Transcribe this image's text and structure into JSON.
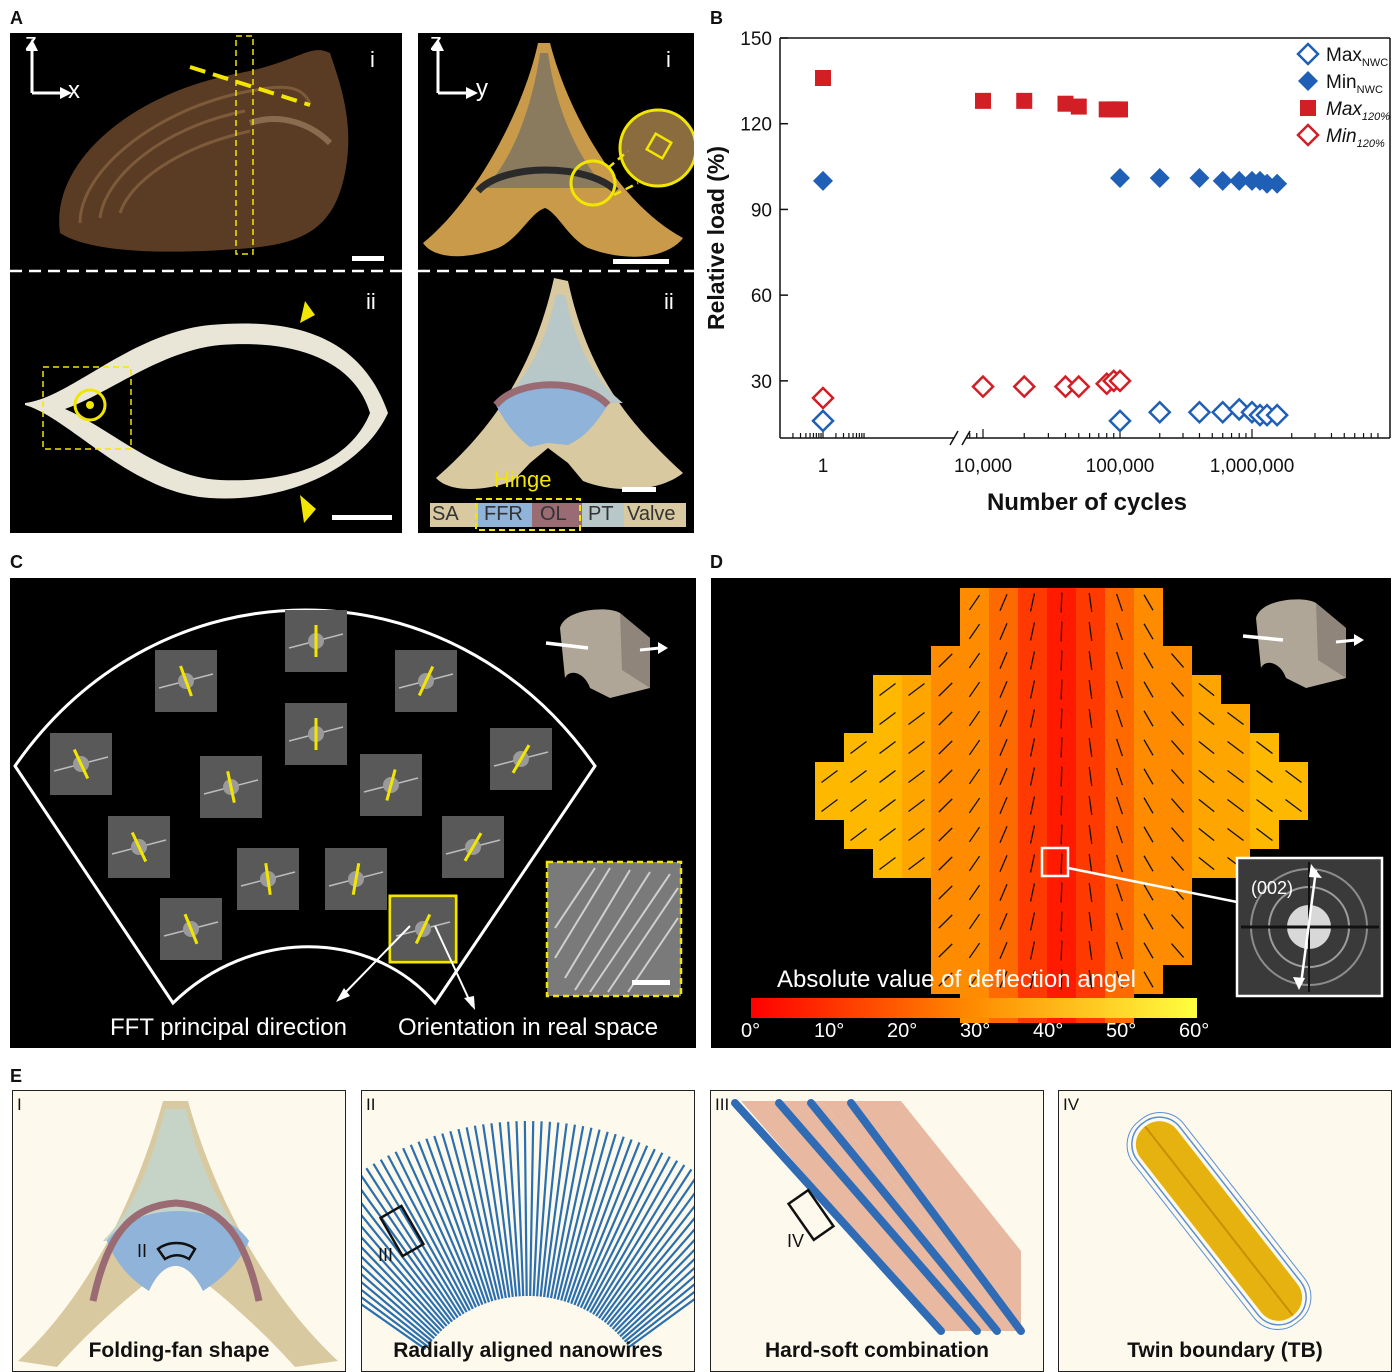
{
  "panels": {
    "A": "A",
    "B": "B",
    "C": "C",
    "D": "D",
    "E": "E"
  },
  "panelA": {
    "left": {
      "axis_v": "z",
      "axis_h": "x",
      "top_roman": "i",
      "bottom_roman": "ii"
    },
    "right": {
      "axis_v": "z",
      "axis_h": "y",
      "top_roman": "i",
      "bottom_roman": "ii",
      "hinge_label": "Hinge",
      "legend": [
        "SA",
        "FFR",
        "OL",
        "PT",
        "Valve"
      ]
    },
    "colors": {
      "highlight": "#f2e600",
      "valve": "#d9c9a0",
      "ffr": "#8fb3d9",
      "ol": "#9a6b73",
      "pt": "#b8c8c8"
    }
  },
  "chart_data": {
    "type": "scatter",
    "xlabel": "Number of cycles",
    "ylabel": "Relative load (%)",
    "xscale": "log (axis break between 1 and 10,000)",
    "ylim": [
      10,
      150
    ],
    "yticks": [
      "30",
      "60",
      "90",
      "120",
      "150"
    ],
    "xticks": [
      "1",
      "10,000",
      "100,000",
      "1,000,000"
    ],
    "legend_position": "top-right",
    "series": [
      {
        "name": "Max",
        "sub": "NWC",
        "marker": "open-diamond",
        "color": "#1f5fb5",
        "points": [
          [
            1,
            16
          ],
          [
            100000,
            16
          ],
          [
            200000,
            19
          ],
          [
            400000,
            19
          ],
          [
            600000,
            19
          ],
          [
            800000,
            20
          ],
          [
            1000000,
            19
          ],
          [
            1150000,
            18
          ],
          [
            1300000,
            18
          ],
          [
            1550000,
            18
          ]
        ]
      },
      {
        "name": "Min",
        "sub": "NWC",
        "marker": "filled-diamond",
        "color": "#1f5fb5",
        "points": [
          [
            1,
            100
          ],
          [
            100000,
            101
          ],
          [
            200000,
            101
          ],
          [
            400000,
            101
          ],
          [
            600000,
            100
          ],
          [
            800000,
            100
          ],
          [
            1000000,
            100
          ],
          [
            1150000,
            100
          ],
          [
            1300000,
            99
          ],
          [
            1550000,
            99
          ]
        ]
      },
      {
        "name": "Max",
        "sub": "120%",
        "italic": true,
        "marker": "filled-square",
        "color": "#d11f25",
        "points": [
          [
            1,
            136
          ],
          [
            10000,
            128
          ],
          [
            20000,
            128
          ],
          [
            40000,
            127
          ],
          [
            50000,
            126
          ],
          [
            80000,
            125
          ],
          [
            90000,
            125
          ],
          [
            100000,
            125
          ]
        ]
      },
      {
        "name": "Min",
        "sub": "120%",
        "italic": true,
        "marker": "open-diamond",
        "color": "#d11f25",
        "points": [
          [
            1,
            24
          ],
          [
            10000,
            28
          ],
          [
            20000,
            28
          ],
          [
            40000,
            28
          ],
          [
            50000,
            28
          ],
          [
            80000,
            29
          ],
          [
            90000,
            30
          ],
          [
            100000,
            30
          ]
        ]
      }
    ]
  },
  "panelC": {
    "label_left": "FFT principal direction",
    "label_right": "Orientation in real space"
  },
  "panelD": {
    "colorbar_title": "Absolute value of deflection angel",
    "colorbar_ticks": [
      "0°",
      "10°",
      "20°",
      "30°",
      "40°",
      "50°",
      "60°"
    ],
    "inset_label": "(002)",
    "colorbar_colors": [
      "#ff0000",
      "#ff8000",
      "#ffff00"
    ]
  },
  "panelE": [
    {
      "roman": "I",
      "caption": "Folding-fan shape",
      "inner_label": "II"
    },
    {
      "roman": "II",
      "caption": "Radially aligned nanowires",
      "inner_label": "III"
    },
    {
      "roman": "III",
      "caption": "Hard-soft combination",
      "inner_label": "IV"
    },
    {
      "roman": "IV",
      "caption": "Twin boundary (TB)"
    }
  ]
}
